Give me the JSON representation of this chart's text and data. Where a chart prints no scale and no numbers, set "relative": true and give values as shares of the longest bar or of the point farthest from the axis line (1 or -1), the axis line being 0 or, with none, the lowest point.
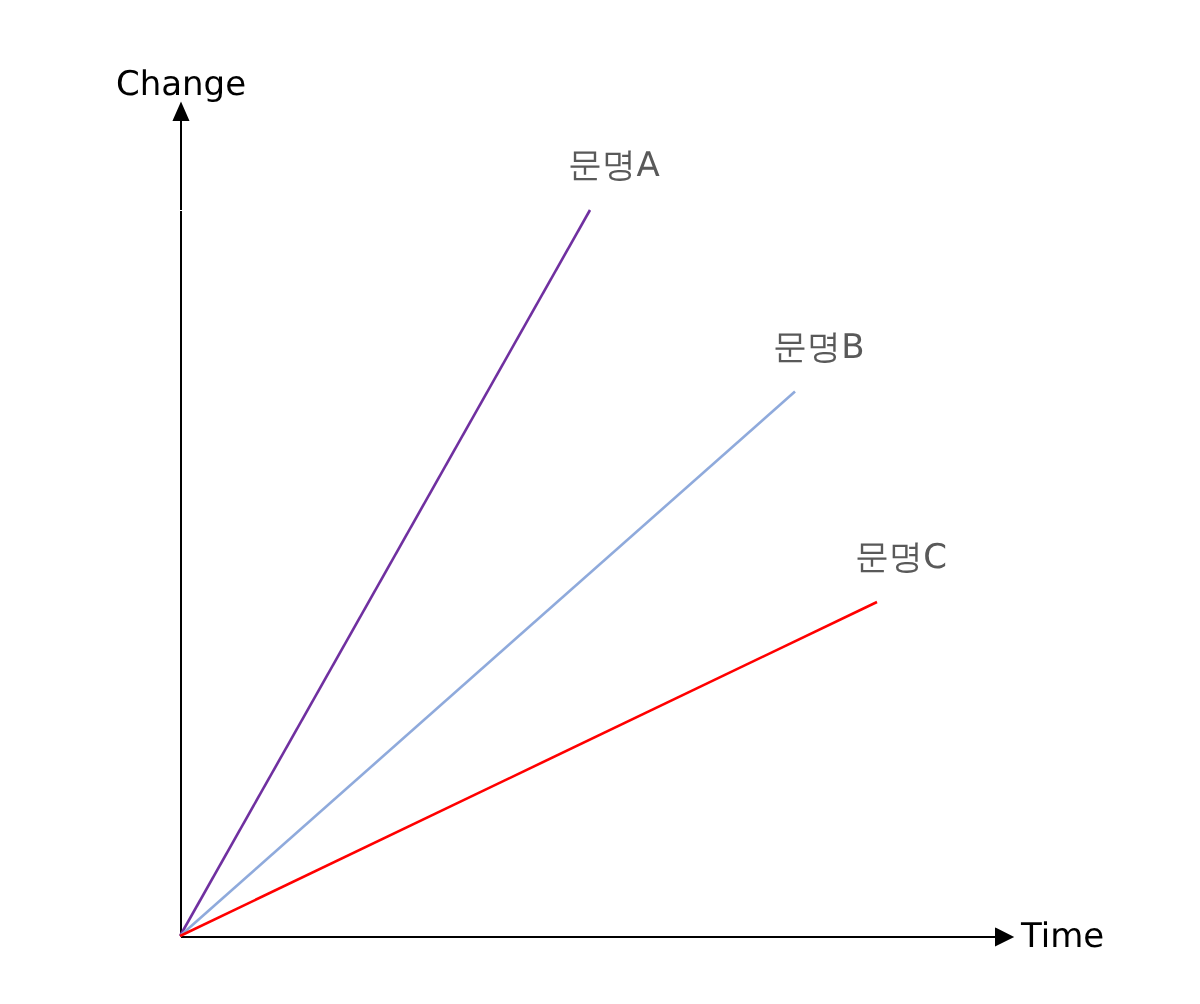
{
  "chart_data": {
    "type": "line",
    "relative": true,
    "xlabel": "Time",
    "ylabel": "Change",
    "grid": false,
    "categories": [
      null,
      null,
      null,
      null,
      null,
      null,
      null,
      null,
      null,
      null,
      null,
      null,
      null,
      null,
      null,
      null,
      null,
      null,
      null,
      null,
      null
    ],
    "series": [
      {
        "name": "문명A",
        "color": "#7030a0",
        "values": [
          0,
          null,
          null,
          null,
          null,
          null,
          null,
          null,
          null,
          null,
          1,
          null,
          null,
          null,
          null,
          null,
          null,
          null,
          null,
          null,
          null
        ]
      },
      {
        "name": "문명B",
        "color": "#8faadc",
        "values": [
          0,
          null,
          null,
          null,
          null,
          null,
          null,
          null,
          null,
          null,
          null,
          null,
          null,
          null,
          null,
          0.75,
          null,
          null,
          null,
          null,
          null
        ]
      },
      {
        "name": "문명C",
        "color": "#ff0000",
        "values": [
          0,
          null,
          null,
          null,
          null,
          null,
          null,
          null,
          null,
          null,
          null,
          null,
          null,
          null,
          null,
          null,
          null,
          0.46,
          null,
          null,
          null
        ]
      }
    ]
  }
}
